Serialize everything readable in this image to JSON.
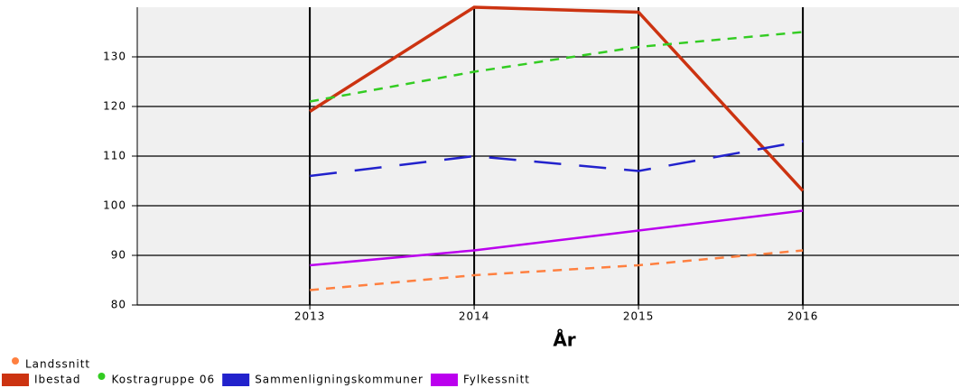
{
  "chart_data": {
    "type": "line",
    "x_label": "År",
    "x": [
      2013,
      2014,
      2015,
      2016
    ],
    "xlim": [
      2011.95,
      2016.95
    ],
    "xticks": [
      2013,
      2014,
      2015,
      2016
    ],
    "ylim": [
      80,
      140
    ],
    "yticks": [
      80,
      90,
      100,
      110,
      120,
      130
    ],
    "grid": true,
    "legend": "bottom",
    "series": [
      {
        "name": "Landssnitt",
        "color": "#ff8040",
        "dash": "10,8",
        "width": 2.5,
        "marker": "dot",
        "values": [
          83,
          86,
          88,
          91
        ]
      },
      {
        "name": "Ibestad",
        "color": "#cc3311",
        "dash": "none",
        "width": 3.5,
        "marker": "rect",
        "values": [
          119,
          140,
          139,
          103
        ]
      },
      {
        "name": "Kostragruppe 06",
        "color": "#33cc22",
        "dash": "10,8",
        "width": 2.5,
        "marker": "dot",
        "values": [
          121,
          127,
          132,
          135
        ]
      },
      {
        "name": "Sammenligningskommuner",
        "color": "#2222cc",
        "dash": "30,20",
        "width": 2.5,
        "marker": "rect",
        "values": [
          106,
          110,
          107,
          113
        ]
      },
      {
        "name": "Fylkessnitt",
        "color": "#bb00ee",
        "dash": "none",
        "width": 2.5,
        "marker": "rect",
        "values": [
          88,
          91,
          95,
          99
        ]
      }
    ]
  }
}
